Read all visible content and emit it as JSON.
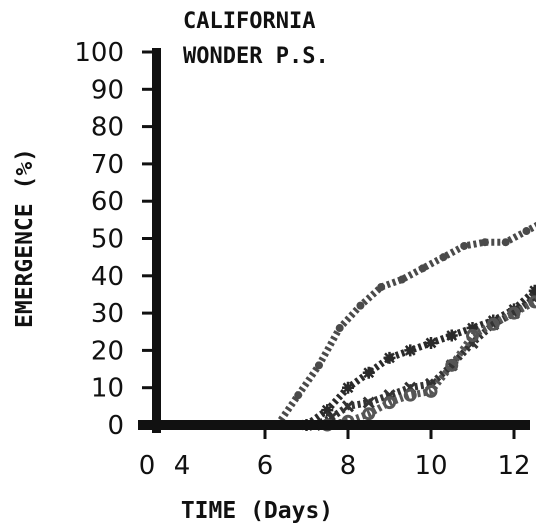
{
  "chart_data": {
    "type": "line",
    "title_lines": [
      "CALIFORNIA",
      "WONDER P.S."
    ],
    "xlabel": "TIME (Days)",
    "ylabel": "EMERGENCE (%)",
    "xlim": [
      0,
      13
    ],
    "ylim": [
      0,
      100
    ],
    "x_ticks": [
      {
        "label": "0",
        "value": 0
      },
      {
        "label": "4",
        "value": 4
      },
      {
        "label": "6",
        "value": 6
      },
      {
        "label": "8",
        "value": 8
      },
      {
        "label": "10",
        "value": 10
      },
      {
        "label": "12",
        "value": 12
      }
    ],
    "y_ticks": [
      0,
      10,
      20,
      30,
      40,
      50,
      60,
      70,
      80,
      90,
      100
    ],
    "grid": false,
    "series": [
      {
        "marker": "dot",
        "color": "#4a4a4a",
        "x": [
          6.3,
          6.8,
          7.3,
          7.8,
          8.3,
          8.8,
          9.3,
          9.8,
          10.3,
          10.8,
          11.3,
          11.8,
          12.3,
          12.8
        ],
        "y": [
          0,
          8,
          16,
          26,
          32,
          37,
          39,
          42,
          45,
          48,
          49,
          49,
          52,
          55
        ]
      },
      {
        "marker": "star",
        "color": "#2a2a2a",
        "x": [
          7.0,
          7.5,
          8.0,
          8.5,
          9.0,
          9.5,
          10.0,
          10.5,
          11.0,
          11.5,
          12.0,
          12.5,
          12.9
        ],
        "y": [
          0,
          4,
          10,
          14,
          18,
          20,
          22,
          24,
          26,
          28,
          31,
          36,
          42
        ]
      },
      {
        "marker": "x",
        "color": "#333333",
        "x": [
          7.2,
          7.6,
          8.0,
          8.5,
          9.0,
          9.5,
          10.0,
          10.5,
          11.0,
          11.5,
          12.0,
          12.5,
          12.9
        ],
        "y": [
          0,
          2,
          5,
          6,
          8,
          10,
          11,
          16,
          22,
          27,
          30,
          34,
          37
        ]
      },
      {
        "marker": "circle",
        "color": "#555555",
        "x": [
          7.5,
          8.0,
          8.5,
          9.0,
          9.5,
          10.0,
          10.5,
          11.0,
          11.5,
          12.0,
          12.5,
          12.9
        ],
        "y": [
          0,
          1,
          3,
          6,
          8,
          9,
          16,
          24,
          27,
          30,
          33,
          35
        ]
      }
    ]
  }
}
